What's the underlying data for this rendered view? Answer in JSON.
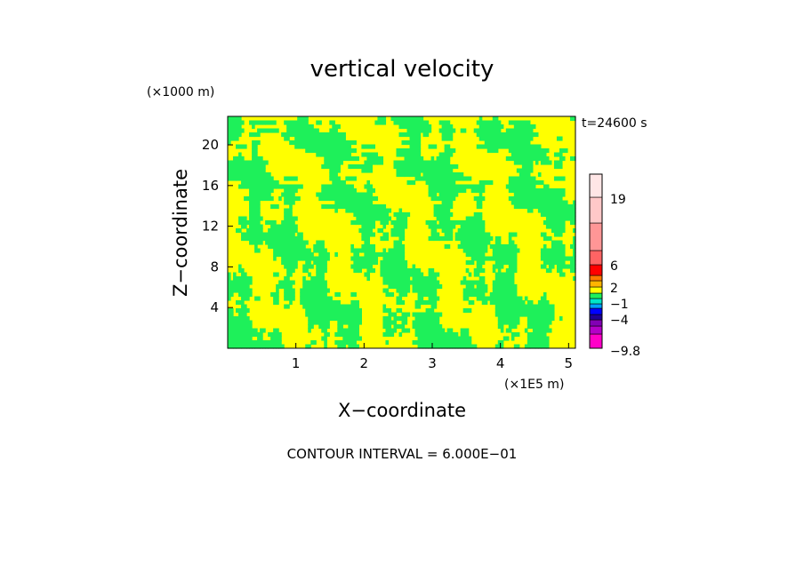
{
  "chart_data": {
    "type": "heatmap",
    "title": "vertical velocity",
    "xlabel": "X−coordinate",
    "ylabel": "Z−coordinate",
    "x_unit": "(×1E5 m)",
    "y_unit": "(×1000 m)",
    "time_label": "t=24600 s",
    "footer": "CONTOUR INTERVAL = 6.000E−01",
    "xlim": [
      0,
      5.1
    ],
    "ylim": [
      0,
      22.8
    ],
    "x_ticks": [
      1,
      2,
      3,
      4,
      5
    ],
    "y_ticks": [
      4,
      8,
      12,
      16,
      20
    ],
    "dominant_colors": [
      "#ffff00",
      "#1ef05a"
    ],
    "colorbar": {
      "levels": [
        {
          "color": "#ff00c8"
        },
        {
          "color": "#b400c8"
        },
        {
          "color": "#8200b4"
        },
        {
          "color": "#1e0096"
        },
        {
          "color": "#0000ff"
        },
        {
          "color": "#00a0ff"
        },
        {
          "color": "#00e6c8"
        },
        {
          "color": "#1ef05a"
        },
        {
          "color": "#ffff00"
        },
        {
          "color": "#ffb400"
        },
        {
          "color": "#ff7800"
        },
        {
          "color": "#ff0000"
        },
        {
          "color": "#ff6464"
        },
        {
          "color": "#ff9696"
        },
        {
          "color": "#ffc8c8"
        },
        {
          "color": "#ffe6e6"
        }
      ],
      "labels": [
        {
          "text": "19",
          "value": 19
        },
        {
          "text": "6",
          "value": 6
        },
        {
          "text": "2",
          "value": 2
        },
        {
          "text": "−1",
          "value": -1
        },
        {
          "text": "−4",
          "value": -4
        },
        {
          "text": "−9.8",
          "value": -9.8
        }
      ]
    }
  }
}
